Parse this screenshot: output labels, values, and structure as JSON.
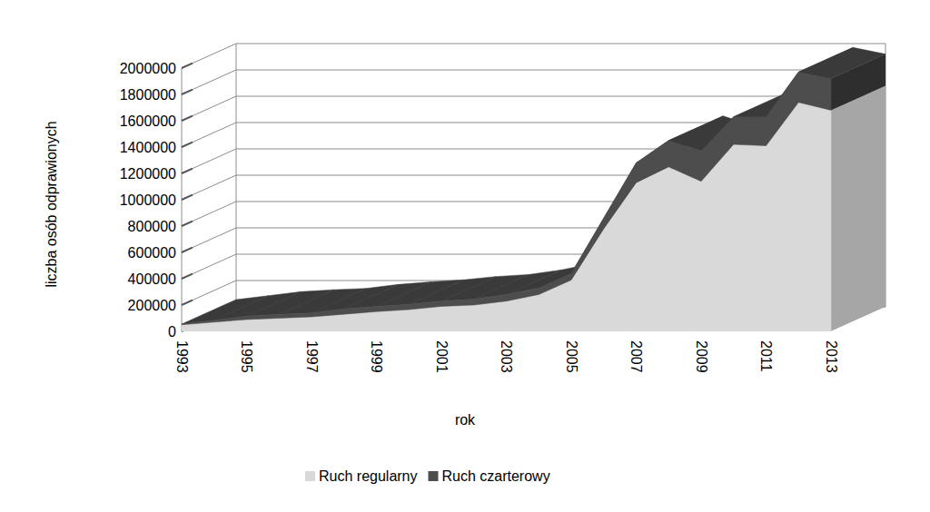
{
  "chart_data": {
    "type": "area",
    "stacked": true,
    "x_label": "rok",
    "y_label": "liczba osób odprawionych",
    "categories": [
      "1993",
      null,
      "1995",
      null,
      "1997",
      null,
      "1999",
      null,
      "2001",
      null,
      "2003",
      null,
      "2005",
      null,
      "2007",
      null,
      "2009",
      null,
      "2011",
      null,
      "2013"
    ],
    "series": [
      {
        "name": "Ruch regularny",
        "color": "#d9d9d9",
        "values": [
          50000,
          70000,
          90000,
          100000,
          110000,
          130000,
          150000,
          165000,
          190000,
          200000,
          230000,
          280000,
          390000,
          780000,
          1130000,
          1250000,
          1140000,
          1420000,
          1410000,
          1740000,
          1680000
        ]
      },
      {
        "name": "Ruch czarterowy",
        "color": "#4d4d4d",
        "values": [
          5000,
          15000,
          25000,
          30000,
          30000,
          40000,
          40000,
          40000,
          40000,
          45000,
          50000,
          50000,
          50000,
          80000,
          150000,
          200000,
          230000,
          210000,
          220000,
          230000,
          240000
        ]
      }
    ],
    "ylim": [
      0,
      2000000
    ],
    "yticks": [
      0,
      200000,
      400000,
      600000,
      800000,
      1000000,
      1200000,
      1400000,
      1600000,
      1800000,
      2000000
    ],
    "grid": true,
    "legend": "bottom"
  }
}
